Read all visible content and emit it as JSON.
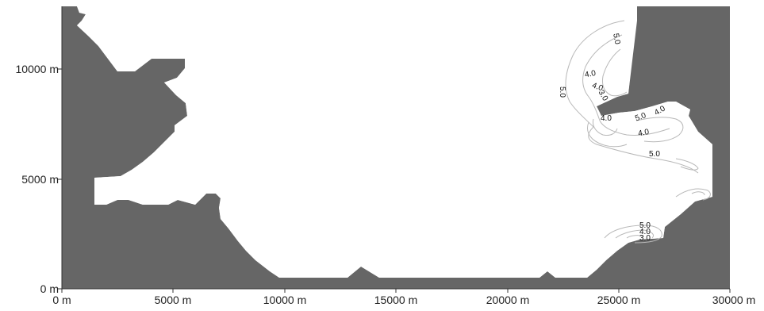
{
  "map": {
    "x_range_m": [
      0,
      30000
    ],
    "y_range_m": [
      0,
      12500
    ],
    "land_color": "#666666",
    "water_color": "#ffffff",
    "contour_color": "#b8b8b8",
    "x_ticks": [
      {
        "value": 0,
        "label": "0 m"
      },
      {
        "value": 5000,
        "label": "5000 m"
      },
      {
        "value": 10000,
        "label": "10000 m"
      },
      {
        "value": 15000,
        "label": "15000 m"
      },
      {
        "value": 20000,
        "label": "20000 m"
      },
      {
        "value": 25000,
        "label": "25000 m"
      },
      {
        "value": 30000,
        "label": "30000 m"
      }
    ],
    "y_ticks": [
      {
        "value": 0,
        "label": "0 m"
      },
      {
        "value": 5000,
        "label": "5000 m"
      },
      {
        "value": 10000,
        "label": "10000 m"
      }
    ],
    "contour_labels": [
      {
        "text": "5.0"
      },
      {
        "text": "4.0"
      },
      {
        "text": "5.0"
      },
      {
        "text": "4.0"
      },
      {
        "text": "3.0"
      },
      {
        "text": "4.0"
      },
      {
        "text": "5.0"
      },
      {
        "text": "4.0"
      },
      {
        "text": "4.0"
      },
      {
        "text": "5.0"
      },
      {
        "text": "5.0"
      },
      {
        "text": "4.0"
      },
      {
        "text": "3.0"
      }
    ]
  }
}
